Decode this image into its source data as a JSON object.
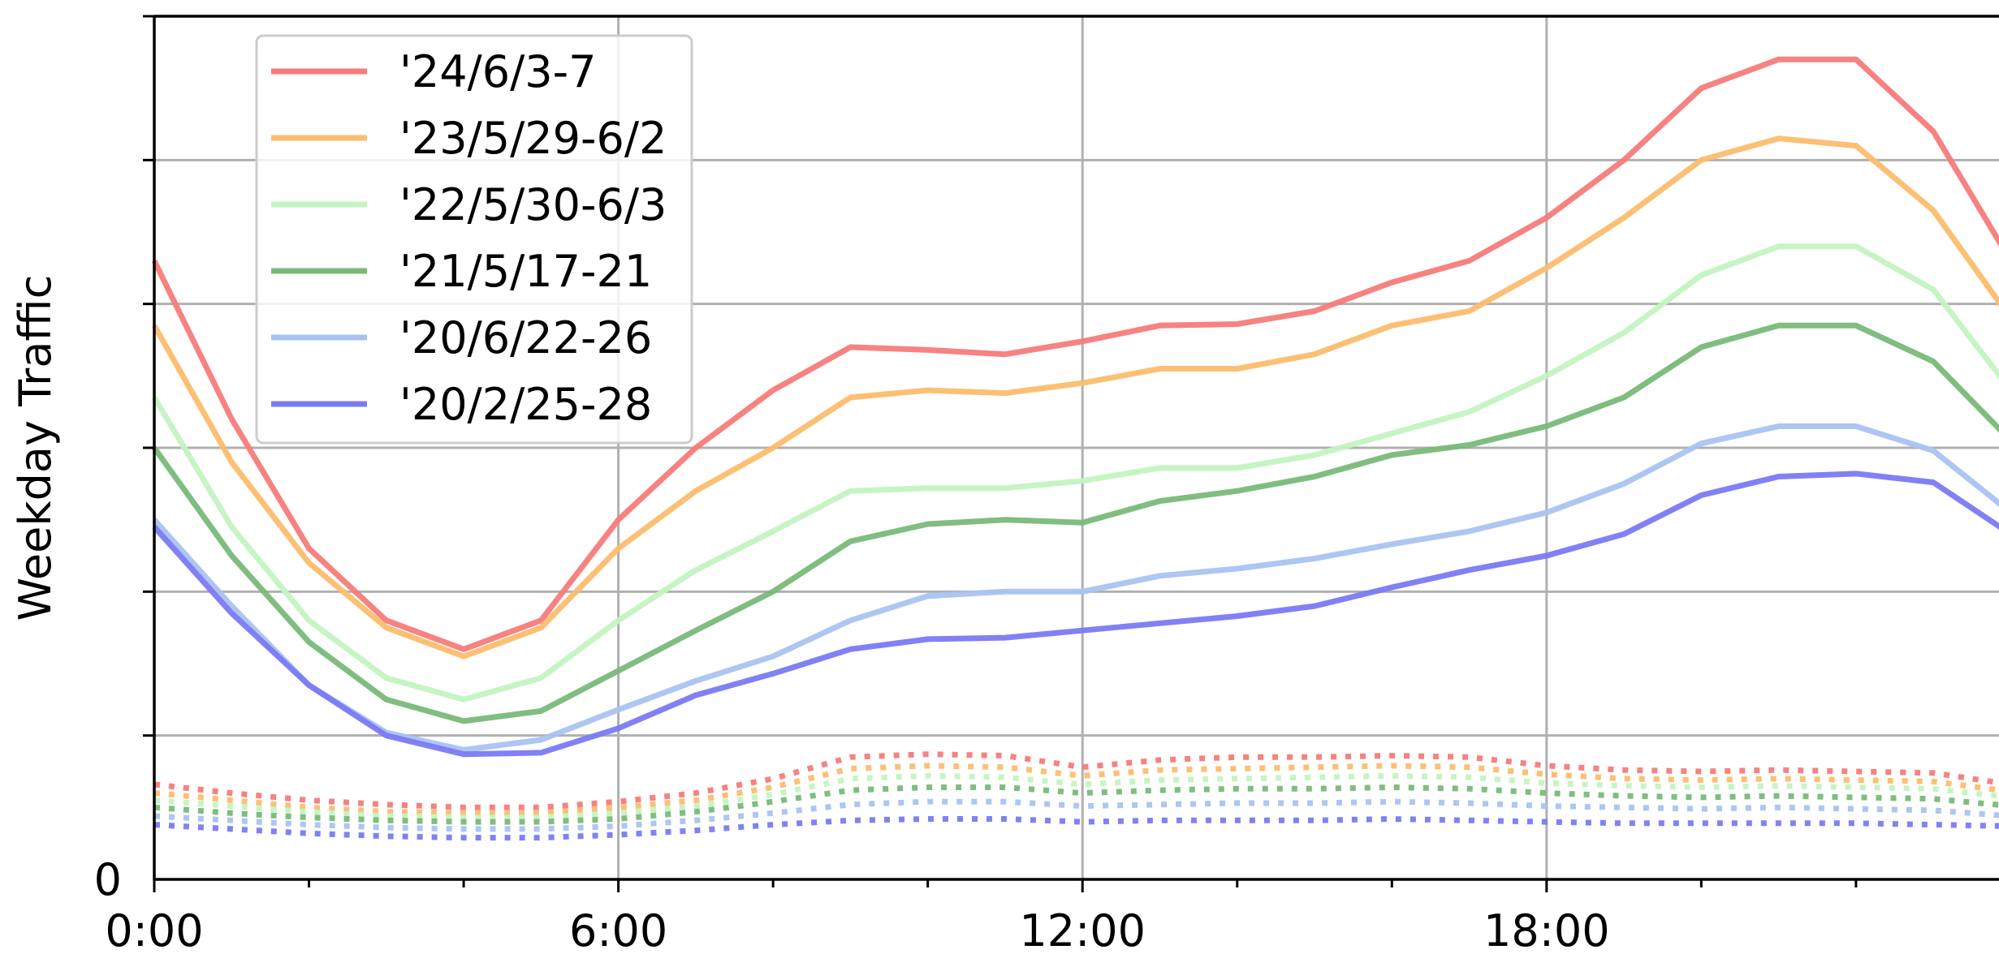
{
  "chart_data": {
    "type": "line",
    "ylabel": "Weekday Traffic",
    "xlabel": "",
    "x": [
      "0:00",
      "1:00",
      "2:00",
      "3:00",
      "4:00",
      "5:00",
      "6:00",
      "7:00",
      "8:00",
      "9:00",
      "10:00",
      "11:00",
      "12:00",
      "13:00",
      "14:00",
      "15:00",
      "16:00",
      "17:00",
      "18:00",
      "19:00",
      "20:00",
      "21:00",
      "22:00",
      "23:00",
      "24:00"
    ],
    "x_tick_labels": [
      "0:00",
      "6:00",
      "12:00",
      "18:00"
    ],
    "y_tick_labels": [
      "0"
    ],
    "xlim": [
      0,
      24
    ],
    "ylim": [
      0,
      6
    ],
    "grid": true,
    "legend_position": "top-left",
    "series": [
      {
        "name": "'24/6/3-7",
        "color": "#f77b7b",
        "style": "solid",
        "values": [
          4.3,
          3.2,
          2.3,
          1.8,
          1.6,
          1.8,
          2.5,
          3.0,
          3.4,
          3.7,
          3.68,
          3.65,
          3.74,
          3.85,
          3.86,
          3.95,
          4.15,
          4.3,
          4.6,
          5.0,
          5.5,
          5.7,
          5.7,
          5.2,
          4.3
        ]
      },
      {
        "name": "'23/5/29-6/2",
        "color": "#fcbd6e",
        "style": "solid",
        "values": [
          3.85,
          2.9,
          2.2,
          1.75,
          1.55,
          1.75,
          2.3,
          2.7,
          3.0,
          3.35,
          3.4,
          3.38,
          3.45,
          3.55,
          3.55,
          3.65,
          3.85,
          3.95,
          4.25,
          4.6,
          5.0,
          5.15,
          5.1,
          4.65,
          3.9
        ]
      },
      {
        "name": "'22/5/30-6/3",
        "color": "#c3f4c0",
        "style": "solid",
        "values": [
          3.35,
          2.45,
          1.8,
          1.4,
          1.25,
          1.4,
          1.8,
          2.15,
          2.42,
          2.7,
          2.72,
          2.72,
          2.77,
          2.86,
          2.86,
          2.95,
          3.1,
          3.25,
          3.5,
          3.8,
          4.2,
          4.4,
          4.4,
          4.1,
          3.4
        ]
      },
      {
        "name": "'21/5/17-21",
        "color": "#79b979",
        "style": "solid",
        "values": [
          3.0,
          2.25,
          1.65,
          1.25,
          1.1,
          1.17,
          1.45,
          1.73,
          2.0,
          2.35,
          2.47,
          2.5,
          2.48,
          2.63,
          2.7,
          2.8,
          2.95,
          3.02,
          3.15,
          3.35,
          3.7,
          3.85,
          3.85,
          3.6,
          3.05
        ]
      },
      {
        "name": "'20/6/22-26",
        "color": "#a9c3f1",
        "style": "solid",
        "values": [
          2.5,
          1.9,
          1.35,
          1.02,
          0.9,
          0.97,
          1.18,
          1.38,
          1.55,
          1.8,
          1.97,
          2.0,
          2.0,
          2.11,
          2.16,
          2.23,
          2.33,
          2.42,
          2.55,
          2.75,
          3.03,
          3.15,
          3.15,
          2.98,
          2.55
        ]
      },
      {
        "name": "'20/2/25-28",
        "color": "#7a7af4",
        "style": "solid",
        "values": [
          2.45,
          1.85,
          1.35,
          1.0,
          0.87,
          0.88,
          1.05,
          1.28,
          1.43,
          1.6,
          1.67,
          1.68,
          1.73,
          1.78,
          1.83,
          1.9,
          2.03,
          2.15,
          2.25,
          2.4,
          2.67,
          2.8,
          2.82,
          2.76,
          2.4
        ]
      },
      {
        "name": "",
        "color": "#f77b7b",
        "style": "dotted",
        "values": [
          0.66,
          0.6,
          0.55,
          0.52,
          0.5,
          0.5,
          0.54,
          0.6,
          0.7,
          0.85,
          0.87,
          0.86,
          0.78,
          0.83,
          0.85,
          0.85,
          0.86,
          0.85,
          0.79,
          0.76,
          0.75,
          0.76,
          0.75,
          0.74,
          0.66
        ]
      },
      {
        "name": "",
        "color": "#fcbd6e",
        "style": "dotted",
        "values": [
          0.6,
          0.55,
          0.5,
          0.47,
          0.46,
          0.46,
          0.5,
          0.55,
          0.64,
          0.77,
          0.79,
          0.78,
          0.72,
          0.76,
          0.77,
          0.78,
          0.79,
          0.78,
          0.73,
          0.7,
          0.69,
          0.7,
          0.69,
          0.68,
          0.61
        ]
      },
      {
        "name": "",
        "color": "#c3f4c0",
        "style": "dotted",
        "values": [
          0.55,
          0.51,
          0.47,
          0.44,
          0.43,
          0.43,
          0.46,
          0.51,
          0.59,
          0.7,
          0.72,
          0.71,
          0.66,
          0.69,
          0.7,
          0.71,
          0.72,
          0.71,
          0.67,
          0.65,
          0.64,
          0.65,
          0.64,
          0.63,
          0.57
        ]
      },
      {
        "name": "",
        "color": "#79b979",
        "style": "dotted",
        "values": [
          0.5,
          0.46,
          0.43,
          0.41,
          0.4,
          0.4,
          0.42,
          0.47,
          0.54,
          0.62,
          0.64,
          0.64,
          0.6,
          0.62,
          0.63,
          0.63,
          0.64,
          0.63,
          0.6,
          0.58,
          0.57,
          0.58,
          0.57,
          0.56,
          0.51
        ]
      },
      {
        "name": "",
        "color": "#a9c3f1",
        "style": "dotted",
        "values": [
          0.44,
          0.41,
          0.38,
          0.36,
          0.35,
          0.35,
          0.37,
          0.41,
          0.46,
          0.52,
          0.54,
          0.54,
          0.51,
          0.52,
          0.53,
          0.53,
          0.54,
          0.53,
          0.51,
          0.5,
          0.49,
          0.5,
          0.49,
          0.48,
          0.44
        ]
      },
      {
        "name": "",
        "color": "#7a7af4",
        "style": "dotted",
        "values": [
          0.38,
          0.35,
          0.32,
          0.3,
          0.29,
          0.29,
          0.31,
          0.34,
          0.38,
          0.41,
          0.42,
          0.42,
          0.4,
          0.41,
          0.41,
          0.41,
          0.42,
          0.41,
          0.4,
          0.39,
          0.39,
          0.39,
          0.39,
          0.38,
          0.37
        ]
      }
    ]
  }
}
